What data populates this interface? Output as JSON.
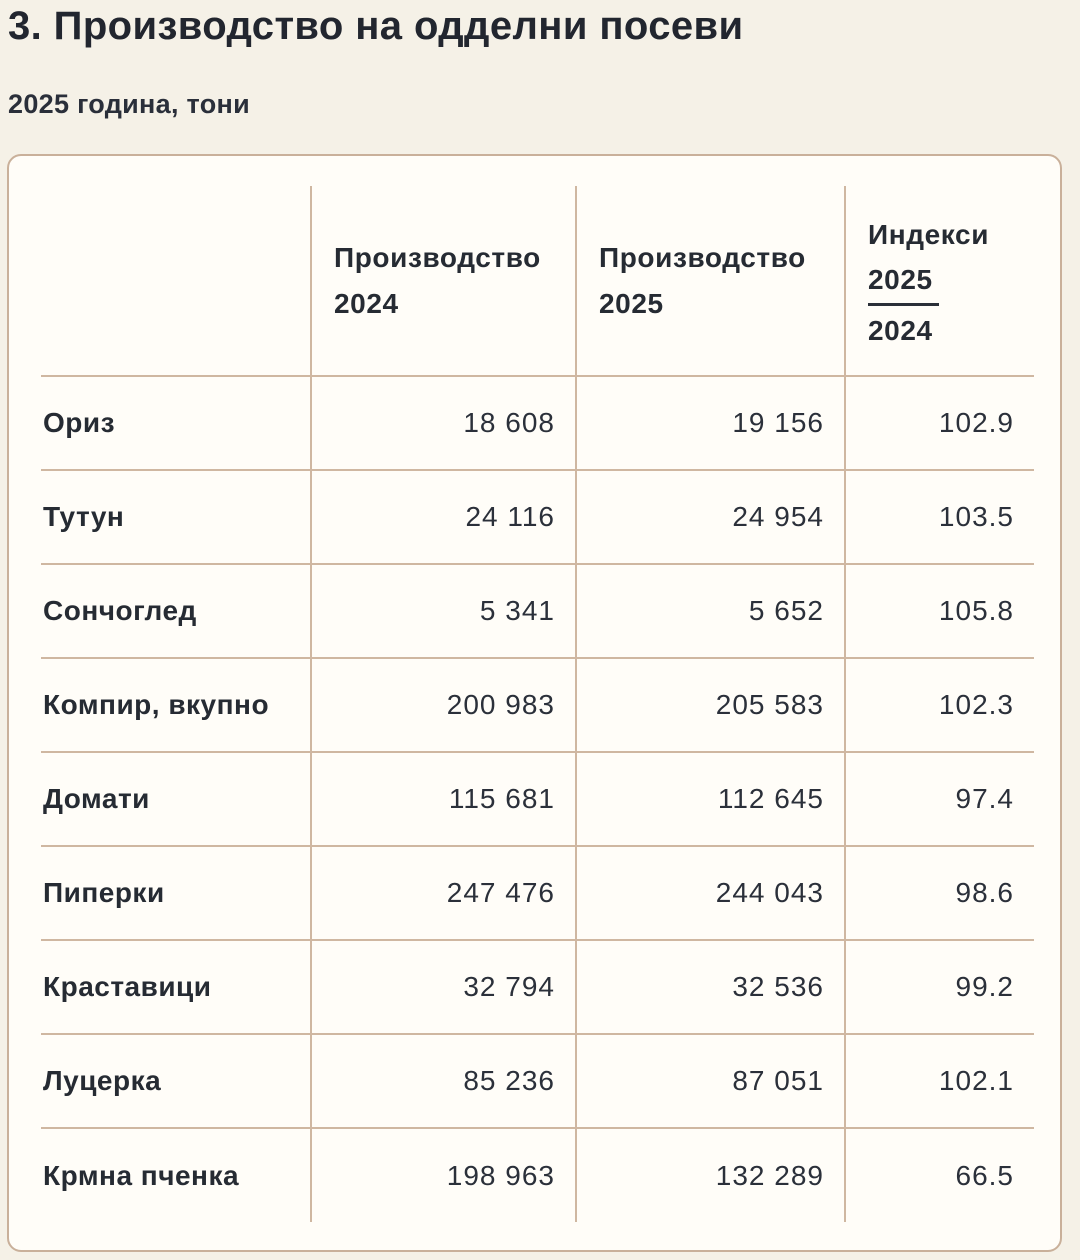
{
  "page": {
    "title": "3. Производство на одделни посеви",
    "subtitle": "2025 година, тони"
  },
  "header": {
    "col_label": "",
    "col_2024": {
      "line1": "Производство",
      "line2": "2024"
    },
    "col_2025": {
      "line1": "Производство",
      "line2": "2025"
    },
    "col_index": {
      "line1": "Индекси",
      "numerator": "2025",
      "denominator": "2024"
    }
  },
  "chart_data": {
    "type": "table",
    "title": "3. Производство на одделни посеви",
    "subtitle": "2025 година, тони",
    "unit": "тони",
    "columns": [
      "",
      "Производство 2024",
      "Производство 2025",
      "Индекси 2025/2024"
    ],
    "rows": [
      {
        "label": "Ориз",
        "prod_2024": "18 608",
        "prod_2025": "19 156",
        "index": "102.9"
      },
      {
        "label": "Тутун",
        "prod_2024": "24 116",
        "prod_2025": "24 954",
        "index": "103.5"
      },
      {
        "label": "Сончоглед",
        "prod_2024": "5 341",
        "prod_2025": "5 652",
        "index": "105.8"
      },
      {
        "label": "Компир, вкупно",
        "prod_2024": "200 983",
        "prod_2025": "205 583",
        "index": "102.3"
      },
      {
        "label": "Домати",
        "prod_2024": "115 681",
        "prod_2025": "112 645",
        "index": "97.4"
      },
      {
        "label": "Пиперки",
        "prod_2024": "247 476",
        "prod_2025": "244 043",
        "index": "98.6"
      },
      {
        "label": "Краставици",
        "prod_2024": "32 794",
        "prod_2025": "32 536",
        "index": "99.2"
      },
      {
        "label": "Луцерка",
        "prod_2024": "85 236",
        "prod_2025": "87 051",
        "index": "102.1"
      },
      {
        "label": "Крмна пченка",
        "prod_2024": "198 963",
        "prod_2025": "132 289",
        "index": "66.5"
      }
    ]
  },
  "colors": {
    "page_background": "#f5f1e7",
    "card_background": "#fffdf8",
    "grid_border": "#cfb7a1",
    "card_border": "#c9b09a",
    "text": "#262b35"
  }
}
